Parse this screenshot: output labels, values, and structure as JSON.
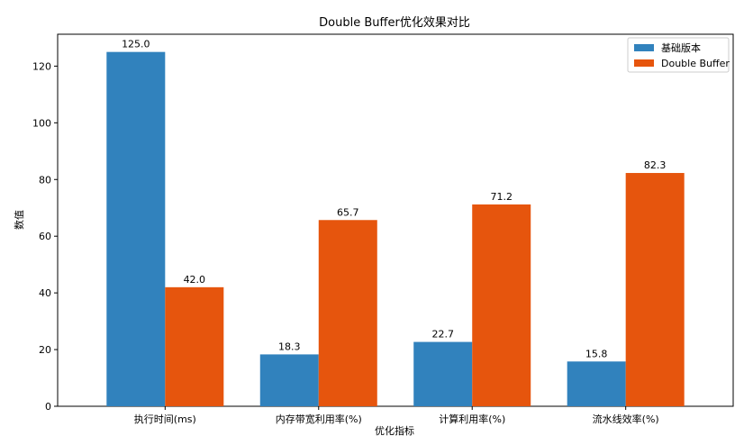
{
  "chart_data": {
    "type": "bar",
    "title": "Double Buffer优化效果对比",
    "xlabel": "优化指标",
    "ylabel": "数值",
    "categories": [
      "执行时间(ms)",
      "内存带宽利用率(%)",
      "计算利用率(%)",
      "流水线效率(%)"
    ],
    "series": [
      {
        "name": "基础版本",
        "values": [
          125.0,
          18.3,
          22.7,
          15.8
        ],
        "color": "#3182bd",
        "labels": [
          "125.0",
          "18.3",
          "22.7",
          "15.8"
        ]
      },
      {
        "name": "Double Buffer",
        "values": [
          42.0,
          65.7,
          71.2,
          82.3
        ],
        "color": "#e6550d",
        "labels": [
          "42.0",
          "65.7",
          "71.2",
          "82.3"
        ]
      }
    ],
    "ylim": [
      0,
      131.25
    ],
    "yticks": [
      "0",
      "20",
      "40",
      "60",
      "80",
      "100",
      "120"
    ],
    "legend_position": "top-right",
    "grid": false
  }
}
